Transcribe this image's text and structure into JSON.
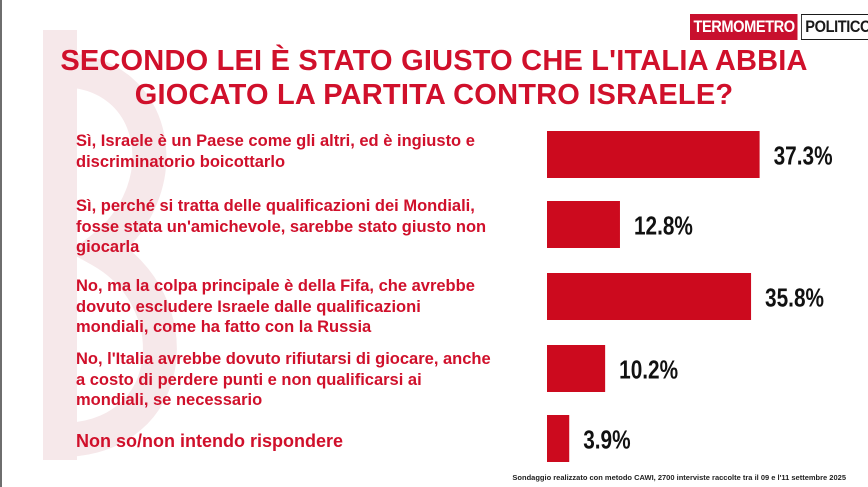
{
  "logo": {
    "part1": "TERMOMETRO",
    "part2": "POLITICO"
  },
  "title": {
    "line1": "SECONDO LEI È STATO GIUSTO CHE L'ITALIA ABBIA",
    "line2": "GIOCATO LA PARTITA CONTRO ISRAELE?"
  },
  "footnote": "Sondaggio realizzato con metodo CAWI, 2700 interviste raccolte tra il 09 e l'11  settembre 2025",
  "colors": {
    "accent": "#d0102b",
    "bar": "#cc0a1e",
    "text": "#111111"
  },
  "chart_data": {
    "type": "bar",
    "orientation": "horizontal",
    "categories": [
      "Sì, Israele è un Paese come gli altri, ed è ingiusto e discriminatorio boicottarlo",
      "Sì, perché si tratta delle qualificazioni dei Mondiali, fosse stata un'amichevole, sarebbe stato giusto non giocarla",
      "No, ma la colpa principale è della Fifa, che avrebbe dovuto escludere Israele dalle qualificazioni mondiali, come ha fatto con la Russia",
      "No, l'Italia avrebbe dovuto rifiutarsi di giocare, anche a costo di perdere punti e non qualificarsi ai mondiali, se necessario",
      "Non so/non intendo rispondere"
    ],
    "label_lines": [
      [
        "Sì, Israele è un Paese come gli altri, ed è ingiusto e",
        "discriminatorio boicottarlo"
      ],
      [
        "Sì, perché si tratta delle qualificazioni dei Mondiali,",
        "fosse stata un'amichevole, sarebbe stato giusto non",
        "giocarla"
      ],
      [
        "No, ma la colpa principale è della Fifa, che avrebbe",
        "dovuto escludere Israele dalle qualificazioni",
        "mondiali, come ha fatto con la Russia"
      ],
      [
        "No, l'Italia avrebbe dovuto rifiutarsi di giocare, anche",
        "a costo di perdere punti e non qualificarsi ai",
        "mondiali, se necessario"
      ],
      [
        "Non so/non intendo rispondere"
      ]
    ],
    "values": [
      37.3,
      12.8,
      35.8,
      10.2,
      3.9
    ],
    "value_labels": [
      "37.3%",
      "12.8%",
      "35.8%",
      "10.2%",
      "3.9%"
    ],
    "xlim": [
      0,
      40
    ],
    "grid": false,
    "legend": "none"
  }
}
